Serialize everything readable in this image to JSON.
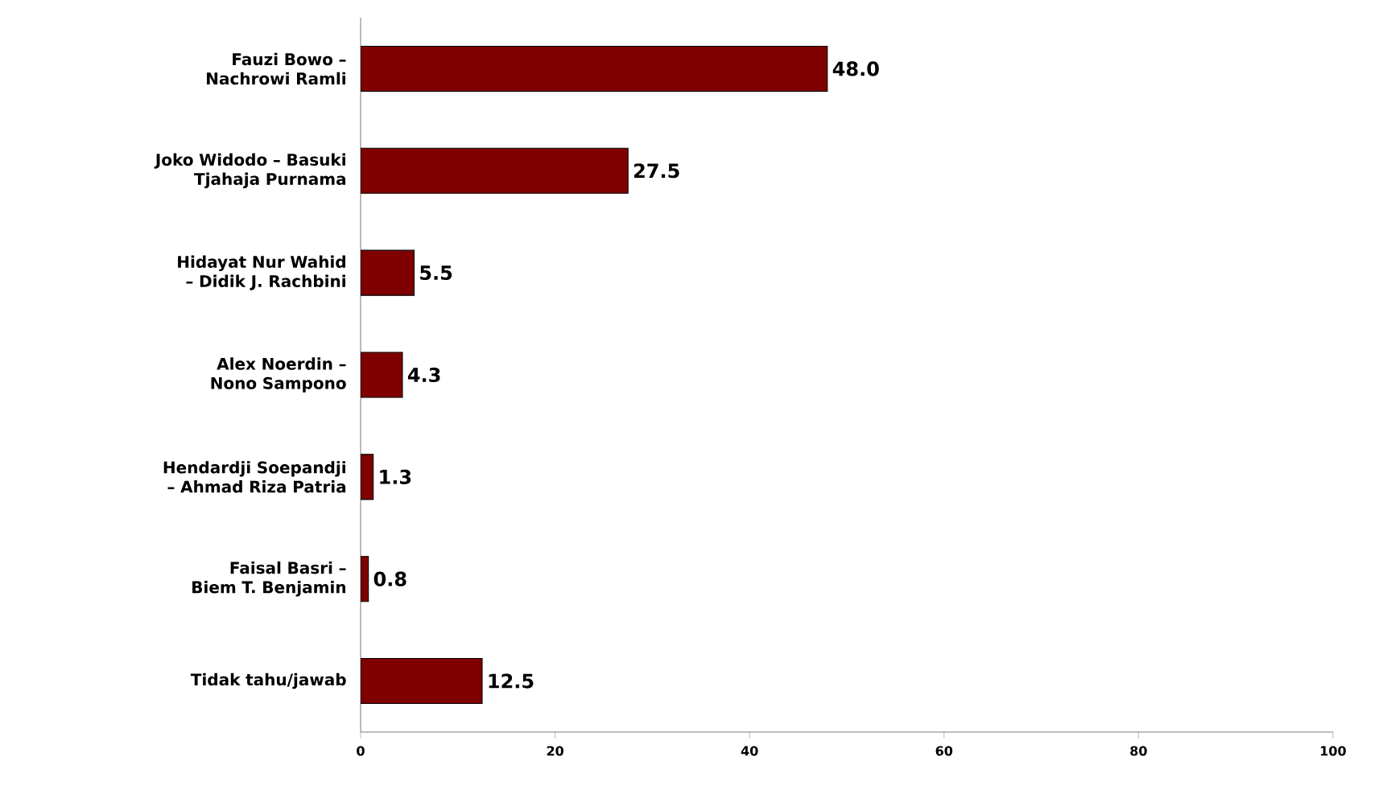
{
  "chart_data": {
    "type": "bar",
    "orientation": "horizontal",
    "categories": [
      "Fauzi Bowo – Nachrowi Ramli",
      "Joko Widodo – Basuki Tjahaja Purnama",
      "Hidayat Nur Wahid – Didik J. Rachbini",
      "Alex Noerdin – Nono Sampono",
      "Hendardji Soepandji – Ahmad Riza Patria",
      "Faisal Basri – Biem T. Benjamin",
      "Tidak tahu/jawab"
    ],
    "values": [
      48.0,
      27.5,
      5.5,
      4.3,
      1.3,
      0.8,
      12.5
    ],
    "value_labels": [
      "48.0",
      "27.5",
      "5.5",
      "4.3",
      "1.3",
      "0.8",
      "12.5"
    ],
    "color": "#7f0000",
    "xlim": [
      0,
      100
    ],
    "xticks": [
      0,
      20,
      40,
      60,
      80,
      100
    ]
  }
}
